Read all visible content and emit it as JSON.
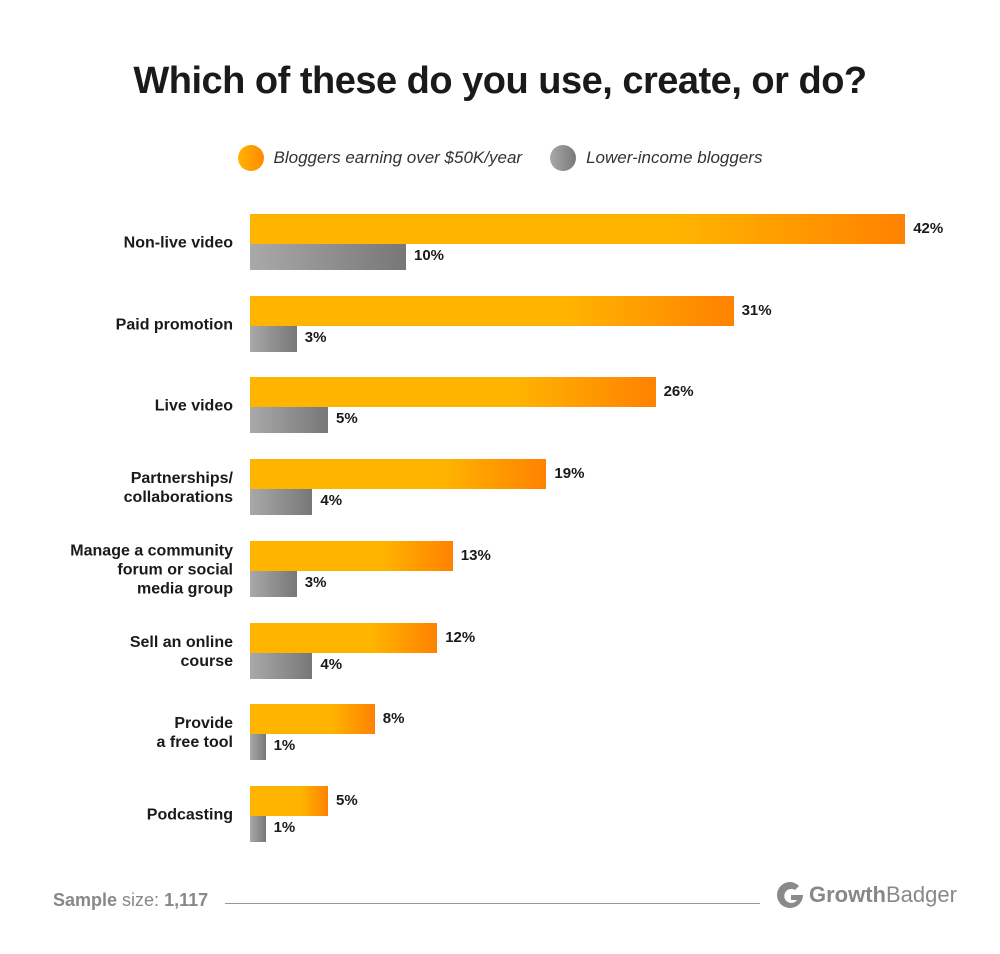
{
  "chart_data": {
    "type": "bar",
    "orientation": "horizontal",
    "title": "Which of these do you use, create, or do?",
    "categories": [
      "Non-live video",
      "Paid promotion",
      "Live video",
      "Partnerships/\ncollaborations",
      "Manage a community\nforum or social\nmedia group",
      "Sell an online\ncourse",
      "Provide\na free tool",
      "Podcasting"
    ],
    "series": [
      {
        "name": "Bloggers earning over $50K/year",
        "values": [
          42,
          31,
          26,
          19,
          13,
          12,
          8,
          5
        ],
        "labels": [
          "42%",
          "31%",
          "26%",
          "19%",
          "13%",
          "12%",
          "8%",
          "5%"
        ],
        "color": "#ffb400"
      },
      {
        "name": "Lower-income bloggers",
        "values": [
          10,
          3,
          5,
          4,
          3,
          4,
          1,
          1
        ],
        "labels": [
          "10%",
          "3%",
          "5%",
          "4%",
          "3%",
          "4%",
          "1%",
          "1%"
        ],
        "color": "#8c8c8c"
      }
    ],
    "value_unit": "%",
    "legend": "top",
    "grid": false
  },
  "footer": {
    "sample_label": "Sample",
    "size_label": "size:",
    "sample_value": "1,117"
  },
  "logo": {
    "text_bold": "Growth",
    "text_light": "Badger"
  }
}
